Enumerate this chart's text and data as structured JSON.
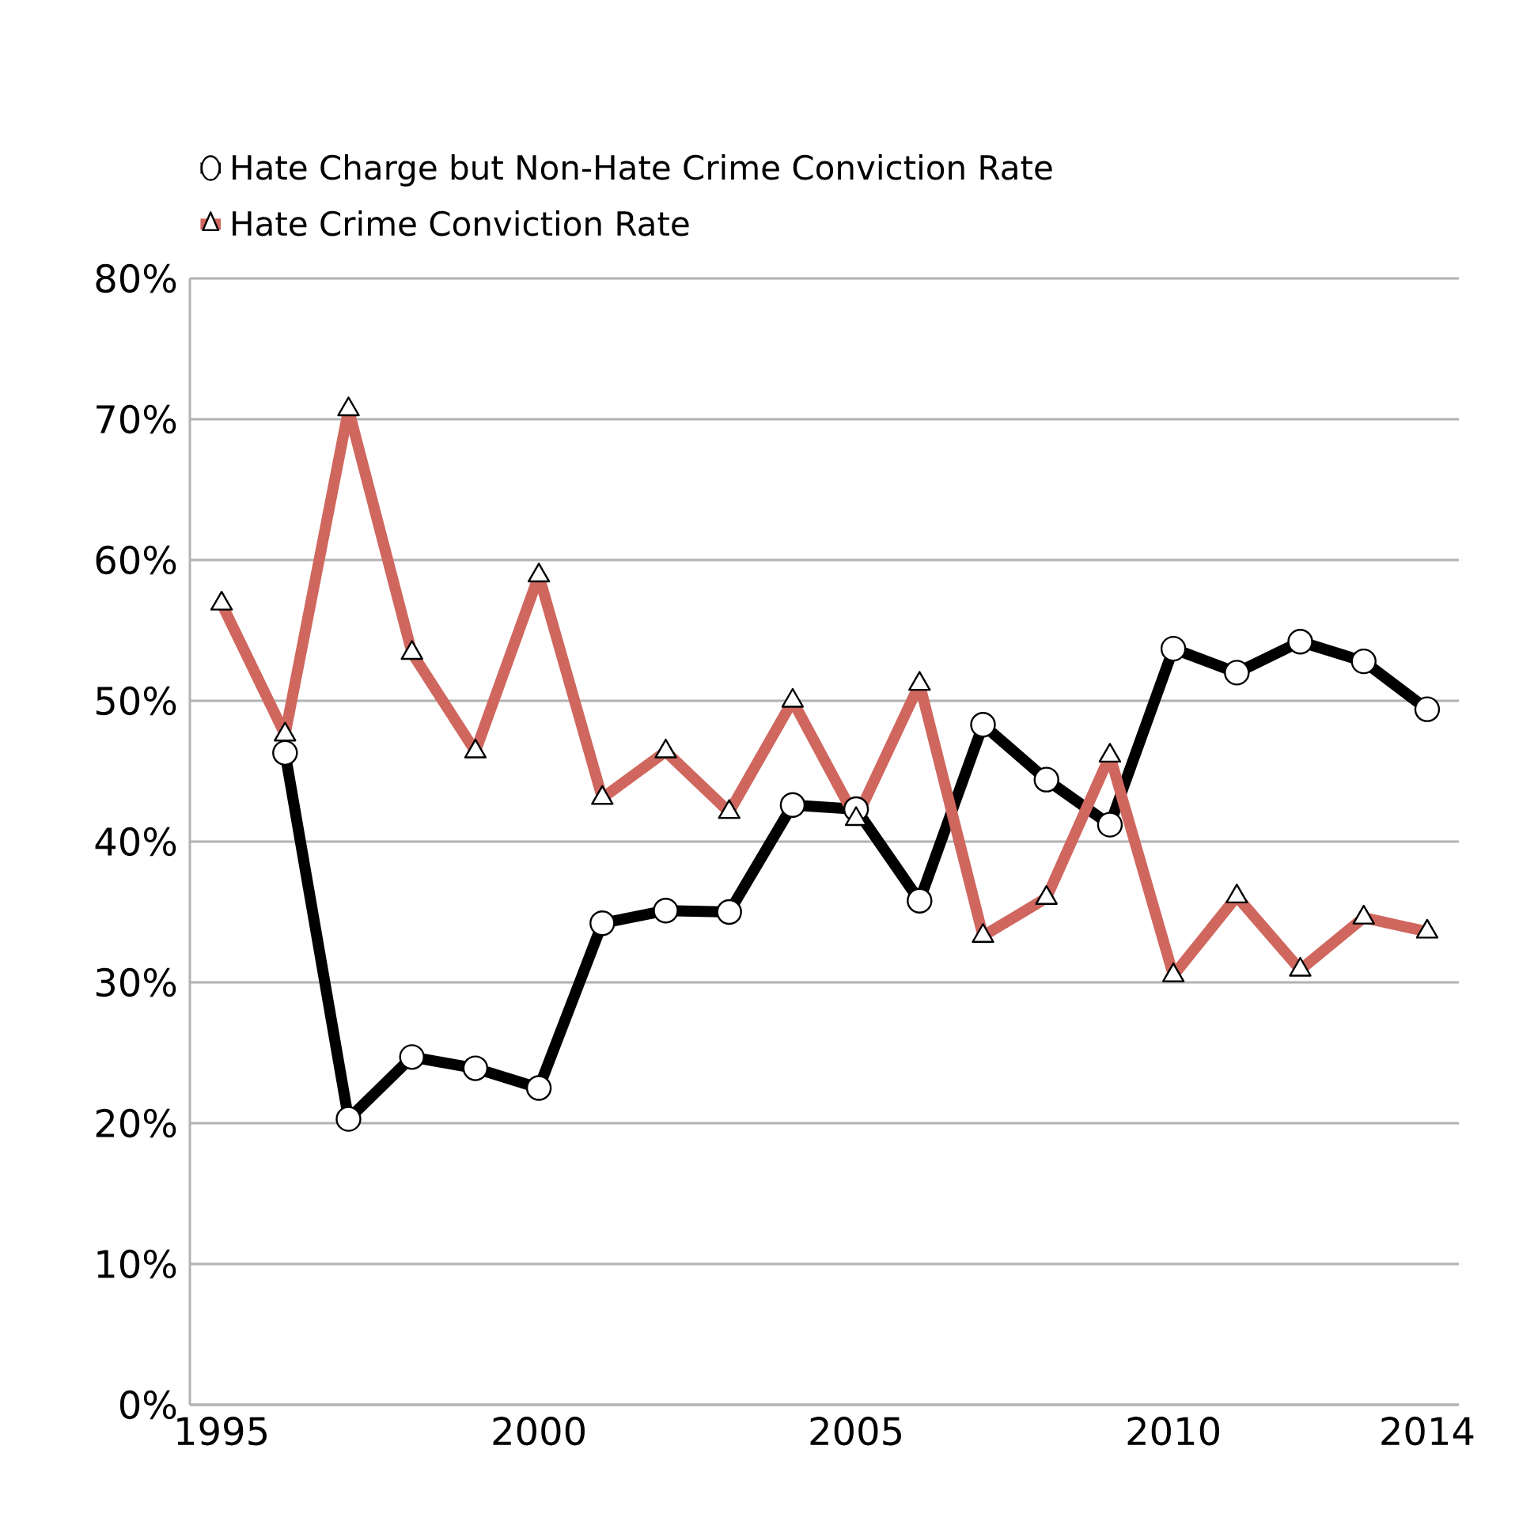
{
  "chart_data": {
    "type": "line",
    "x": [
      1995,
      1996,
      1997,
      1998,
      1999,
      2000,
      2001,
      2002,
      2003,
      2004,
      2005,
      2006,
      2007,
      2008,
      2009,
      2010,
      2011,
      2012,
      2013,
      2014
    ],
    "series": [
      {
        "name": "Hate Charge but Non-Hate Crime Conviction Rate",
        "color": "#000000",
        "marker": "circle",
        "values": [
          null,
          46.3,
          20.3,
          24.7,
          23.9,
          22.5,
          34.2,
          35.1,
          35.0,
          42.6,
          42.3,
          35.8,
          48.3,
          44.4,
          41.2,
          53.7,
          52.0,
          54.2,
          52.8,
          49.4
        ]
      },
      {
        "name": "Hate Crime Conviction Rate",
        "color": "#d0675f",
        "marker": "triangle",
        "values": [
          56.9,
          47.6,
          70.7,
          53.4,
          46.4,
          58.9,
          43.1,
          46.4,
          42.1,
          50.0,
          41.6,
          51.2,
          33.3,
          36.0,
          46.1,
          30.5,
          36.1,
          30.9,
          34.6,
          33.6
        ]
      }
    ],
    "xlim": [
      1994.5,
      2014.5
    ],
    "xticks": [
      1995,
      2000,
      2005,
      2010,
      2014
    ],
    "ylim": [
      0,
      80
    ],
    "yticks": [
      {
        "value": 0,
        "label": "0%"
      },
      {
        "value": 10,
        "label": "10%"
      },
      {
        "value": 20,
        "label": "20%"
      },
      {
        "value": 30,
        "label": "30%"
      },
      {
        "value": 40,
        "label": "40%"
      },
      {
        "value": 50,
        "label": "50%"
      },
      {
        "value": 60,
        "label": "60%"
      },
      {
        "value": 70,
        "label": "70%"
      },
      {
        "value": 80,
        "label": "80%"
      }
    ],
    "grid": "y",
    "legend": "top left",
    "line_style": "solid"
  }
}
